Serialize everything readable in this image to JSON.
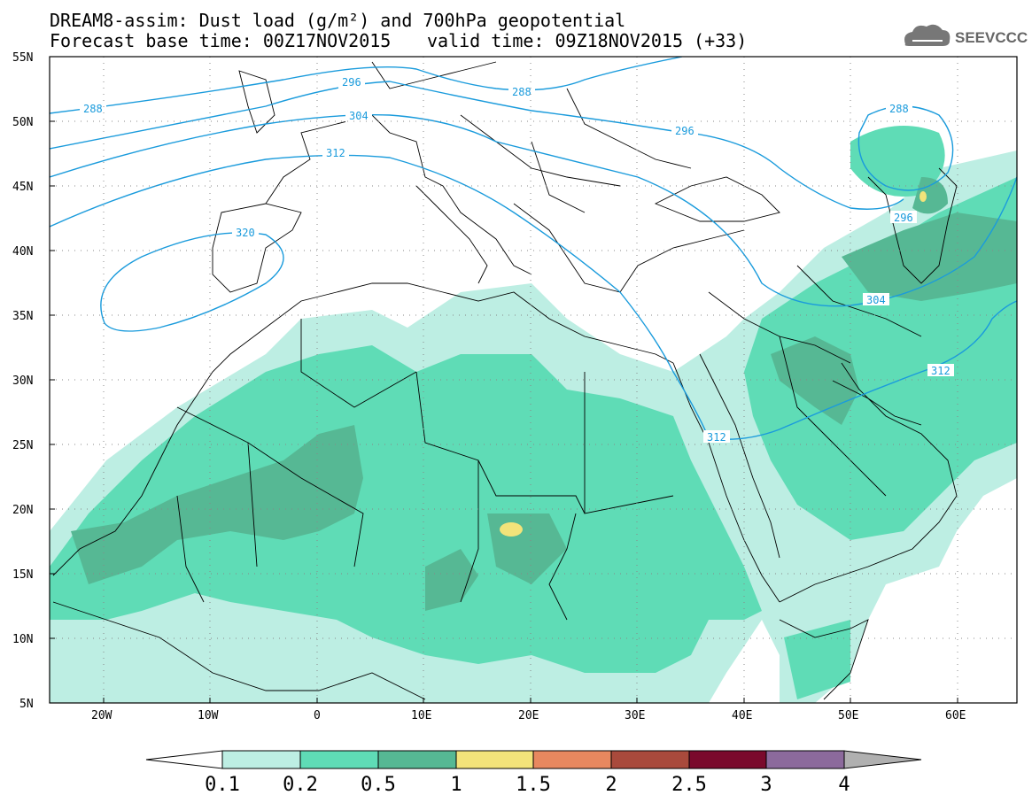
{
  "title": {
    "line1": "DREAM8-assim: Dust load (g/m²) and 700hPa geopotential",
    "line2_left": "Forecast base time: 00Z17NOV2015",
    "line2_right": "valid time: 09Z18NOV2015 (+33)"
  },
  "logo": {
    "text": "SEEVCCC",
    "icon": "cloud-logo-icon"
  },
  "lat_labels": [
    "55N",
    "50N",
    "45N",
    "40N",
    "35N",
    "30N",
    "25N",
    "20N",
    "15N",
    "10N",
    "5N"
  ],
  "lon_labels": [
    "20W",
    "10W",
    "0",
    "10E",
    "20E",
    "30E",
    "40E",
    "50E",
    "60E"
  ],
  "contour_labels": [
    "288",
    "296",
    "304",
    "312",
    "320"
  ],
  "colorbar": {
    "labels": [
      "0.1",
      "0.2",
      "0.5",
      "1",
      "1.5",
      "2",
      "2.5",
      "3",
      "4"
    ],
    "colors": {
      "0.1-0.2": "#bdeee3",
      "0.2-0.5": "#5fdcb6",
      "0.5-1": "#56b894",
      "1-1.5": "#f3e37a",
      "1.5-2": "#e8885f",
      "2-2.5": "#a94a3c",
      "2.5-3": "#7a0a2c",
      "3-4": "#8c6a9c",
      "above-4": "#b0b0b0"
    }
  },
  "colors": {
    "contour": "#1a9bdc",
    "border": "#000000"
  }
}
